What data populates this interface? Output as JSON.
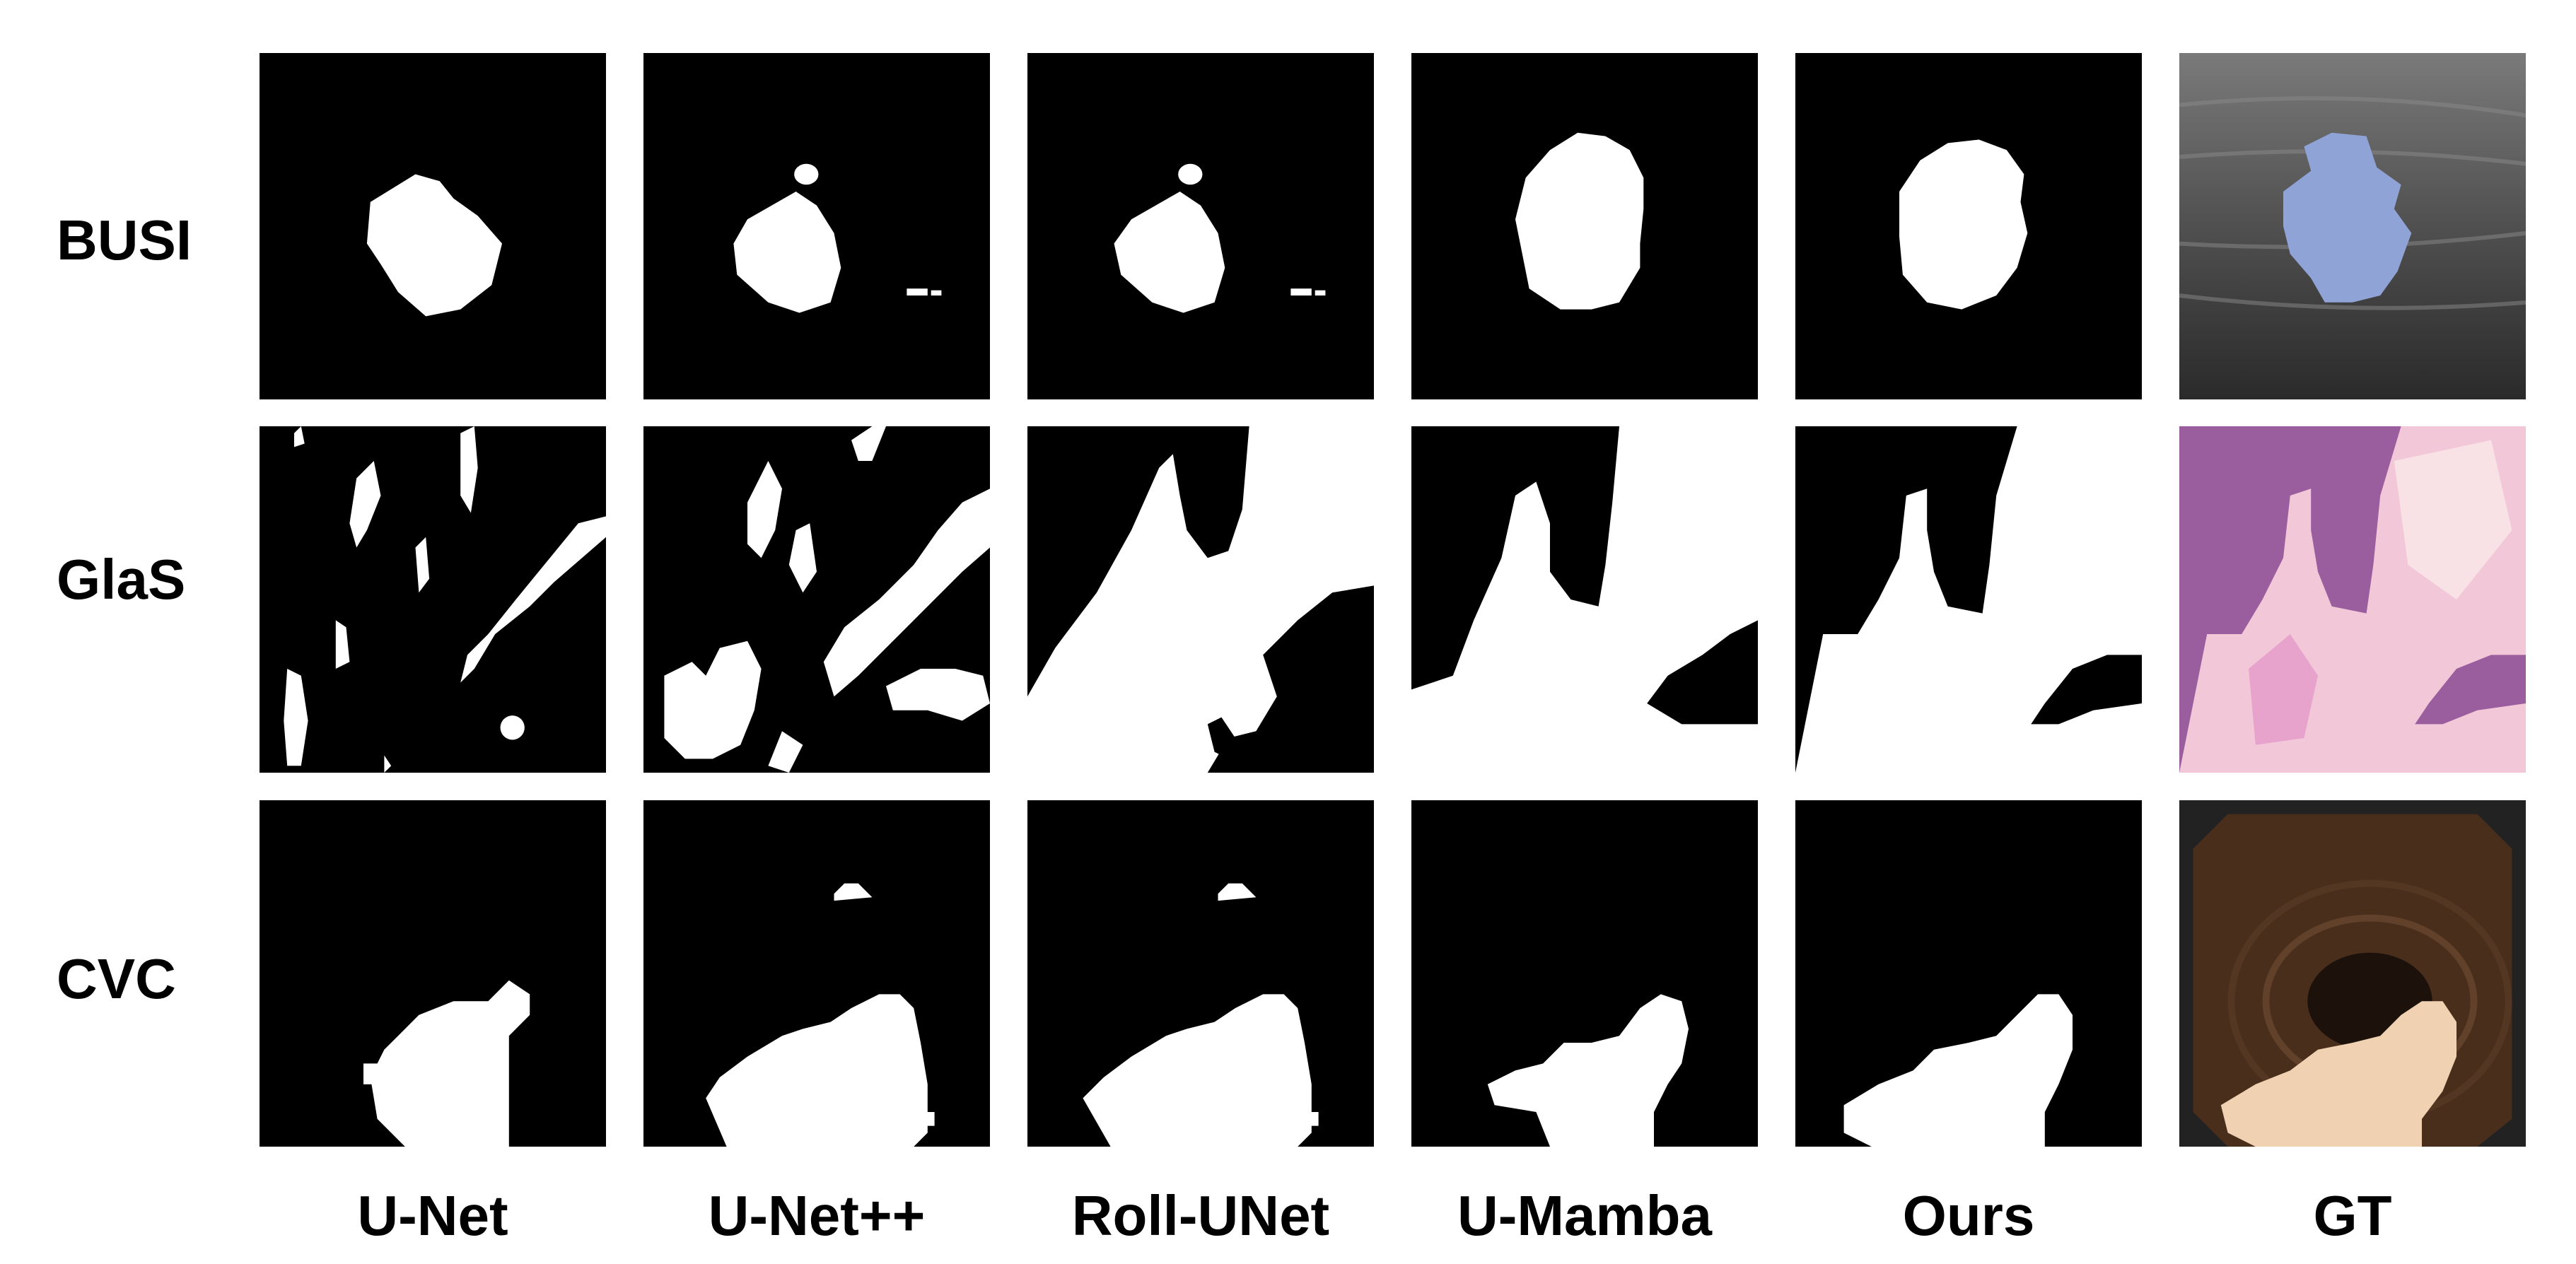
{
  "rows": [
    "BUSI",
    "GlaS",
    "CVC"
  ],
  "columns": [
    "U-Net",
    "U-Net++",
    "Roll-UNet",
    "U-Mamba",
    "Ours",
    "GT"
  ],
  "colors": {
    "mask": "#ffffff",
    "background": "#000000",
    "busi_overlay": "#8fa3d6",
    "glas_tissue": "#e7a3cc",
    "cvc_overlay": "#f0d2b3"
  }
}
